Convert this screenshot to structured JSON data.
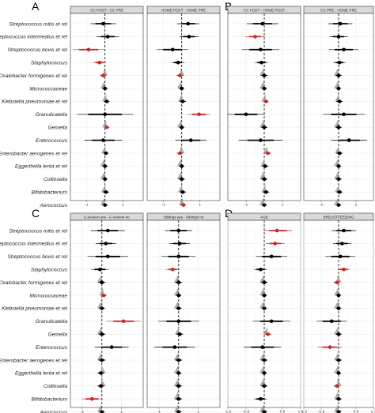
{
  "chart_data": [
    {
      "letter": "A",
      "type": "forest",
      "facets": [
        {
          "strip": "CC POST - CC PRE",
          "xlim": [
            -1.9,
            2.1
          ],
          "xticks": [
            -1,
            0,
            1
          ],
          "points": [
            {
              "est": -0.1,
              "lo": -0.5,
              "hi": 0.3,
              "sig": false
            },
            {
              "est": 0.15,
              "lo": -0.2,
              "hi": 0.5,
              "sig": false
            },
            {
              "est": -0.9,
              "lo": -1.4,
              "hi": -0.4,
              "sig": true
            },
            {
              "est": -0.3,
              "lo": -0.5,
              "hi": -0.1,
              "sig": true
            },
            {
              "est": -0.1,
              "lo": -0.2,
              "hi": 0.0,
              "sig": true
            },
            {
              "est": 0.0,
              "lo": -0.08,
              "hi": 0.08,
              "sig": false
            },
            {
              "est": 0.1,
              "lo": 0.02,
              "hi": 0.18,
              "sig": false
            },
            {
              "est": 0.0,
              "lo": -0.9,
              "hi": 0.9,
              "sig": false
            },
            {
              "est": 0.1,
              "lo": 0.02,
              "hi": 0.18,
              "sig": true
            },
            {
              "est": -0.1,
              "lo": -0.7,
              "hi": 0.5,
              "sig": false
            },
            {
              "est": 0.05,
              "lo": -0.03,
              "hi": 0.13,
              "sig": false
            },
            {
              "est": 0.0,
              "lo": -0.08,
              "hi": 0.08,
              "sig": false
            },
            {
              "est": 0.0,
              "lo": -0.08,
              "hi": 0.08,
              "sig": false
            },
            {
              "est": 0.05,
              "lo": -0.05,
              "hi": 0.15,
              "sig": false
            },
            {
              "est": 0.0,
              "lo": -0.08,
              "hi": 0.08,
              "sig": false
            }
          ]
        },
        {
          "strip": "HOME POST - HOME PRE",
          "xlim": [
            -1.9,
            2.1
          ],
          "xticks": [
            -1,
            0,
            1
          ],
          "points": [
            {
              "est": 0.35,
              "lo": 0.0,
              "hi": 0.7,
              "sig": false
            },
            {
              "est": 0.4,
              "lo": 0.1,
              "hi": 0.7,
              "sig": false
            },
            {
              "est": -0.5,
              "lo": -1.0,
              "hi": 0.0,
              "sig": false
            },
            {
              "est": -0.2,
              "lo": -0.4,
              "hi": 0.0,
              "sig": false
            },
            {
              "est": -0.1,
              "lo": -0.2,
              "hi": 0.0,
              "sig": true
            },
            {
              "est": 0.0,
              "lo": -0.08,
              "hi": 0.08,
              "sig": false
            },
            {
              "est": 0.05,
              "lo": -0.05,
              "hi": 0.15,
              "sig": false
            },
            {
              "est": 0.95,
              "lo": 0.6,
              "hi": 1.3,
              "sig": true
            },
            {
              "est": 0.0,
              "lo": -0.08,
              "hi": 0.08,
              "sig": false
            },
            {
              "est": 0.5,
              "lo": 0.0,
              "hi": 1.0,
              "sig": false
            },
            {
              "est": -0.1,
              "lo": -0.2,
              "hi": 0.0,
              "sig": true
            },
            {
              "est": 0.0,
              "lo": -0.08,
              "hi": 0.08,
              "sig": false
            },
            {
              "est": 0.0,
              "lo": -0.1,
              "hi": 0.1,
              "sig": false
            },
            {
              "est": 0.05,
              "lo": -0.05,
              "hi": 0.15,
              "sig": false
            },
            {
              "est": 0.1,
              "lo": 0.02,
              "hi": 0.18,
              "sig": true
            }
          ]
        }
      ]
    },
    {
      "letter": "B",
      "type": "forest",
      "facets": [
        {
          "strip": "CC POST - HOME POST",
          "xlim": [
            -2.0,
            2.0
          ],
          "xticks": [
            -1,
            0,
            1
          ],
          "points": [
            {
              "est": -0.1,
              "lo": -0.6,
              "hi": 0.4,
              "sig": false
            },
            {
              "est": -0.5,
              "lo": -0.8,
              "hi": -0.2,
              "sig": true
            },
            {
              "est": -0.2,
              "lo": -0.8,
              "hi": 0.4,
              "sig": false
            },
            {
              "est": -0.15,
              "lo": -0.35,
              "hi": 0.05,
              "sig": false
            },
            {
              "est": 0.0,
              "lo": -0.1,
              "hi": 0.1,
              "sig": false
            },
            {
              "est": 0.0,
              "lo": -0.08,
              "hi": 0.08,
              "sig": false
            },
            {
              "est": 0.1,
              "lo": 0.02,
              "hi": 0.18,
              "sig": true
            },
            {
              "est": -1.0,
              "lo": -1.6,
              "hi": -0.4,
              "sig": false
            },
            {
              "est": 0.0,
              "lo": -0.1,
              "hi": 0.1,
              "sig": false
            },
            {
              "est": -0.2,
              "lo": -0.9,
              "hi": 0.5,
              "sig": false
            },
            {
              "est": 0.2,
              "lo": 0.1,
              "hi": 0.3,
              "sig": true
            },
            {
              "est": 0.05,
              "lo": -0.05,
              "hi": 0.15,
              "sig": false
            },
            {
              "est": 0.0,
              "lo": -0.1,
              "hi": 0.1,
              "sig": false
            },
            {
              "est": 0.1,
              "lo": 0.0,
              "hi": 0.2,
              "sig": false
            },
            {
              "est": 0.0,
              "lo": -0.08,
              "hi": 0.08,
              "sig": false
            }
          ]
        },
        {
          "strip": "CC PRE - HOME PRE",
          "xlim": [
            -2.0,
            2.0
          ],
          "xticks": [
            -1,
            0,
            1
          ],
          "points": [
            {
              "est": 0.1,
              "lo": -0.3,
              "hi": 0.5,
              "sig": false
            },
            {
              "est": 0.0,
              "lo": -0.3,
              "hi": 0.3,
              "sig": false
            },
            {
              "est": 0.3,
              "lo": -0.2,
              "hi": 0.8,
              "sig": false
            },
            {
              "est": 0.05,
              "lo": -0.15,
              "hi": 0.25,
              "sig": false
            },
            {
              "est": 0.0,
              "lo": -0.1,
              "hi": 0.1,
              "sig": false
            },
            {
              "est": 0.0,
              "lo": -0.08,
              "hi": 0.08,
              "sig": false
            },
            {
              "est": 0.05,
              "lo": -0.05,
              "hi": 0.15,
              "sig": false
            },
            {
              "est": 0.3,
              "lo": -0.4,
              "hi": 1.0,
              "sig": false
            },
            {
              "est": 0.0,
              "lo": -0.1,
              "hi": 0.1,
              "sig": false
            },
            {
              "est": 0.6,
              "lo": 0.0,
              "hi": 1.2,
              "sig": false
            },
            {
              "est": 0.05,
              "lo": -0.05,
              "hi": 0.15,
              "sig": false
            },
            {
              "est": 0.0,
              "lo": -0.08,
              "hi": 0.08,
              "sig": false
            },
            {
              "est": 0.0,
              "lo": -0.1,
              "hi": 0.1,
              "sig": false
            },
            {
              "est": 0.05,
              "lo": -0.05,
              "hi": 0.15,
              "sig": false
            },
            {
              "est": 0.0,
              "lo": -0.08,
              "hi": 0.08,
              "sig": false
            }
          ]
        }
      ]
    },
    {
      "letter": "C",
      "type": "forest",
      "facets": [
        {
          "strip": "C-section yes - C-section no",
          "xlim": [
            -1.6,
            2.1
          ],
          "xticks": [
            -1,
            0,
            1
          ],
          "points": [
            {
              "est": 0.3,
              "lo": -0.2,
              "hi": 0.8,
              "sig": false
            },
            {
              "est": 0.2,
              "lo": -0.1,
              "hi": 0.5,
              "sig": false
            },
            {
              "est": 0.3,
              "lo": -0.3,
              "hi": 0.9,
              "sig": false
            },
            {
              "est": -0.1,
              "lo": -0.35,
              "hi": 0.15,
              "sig": false
            },
            {
              "est": 0.0,
              "lo": -0.1,
              "hi": 0.1,
              "sig": false
            },
            {
              "est": 0.1,
              "lo": 0.02,
              "hi": 0.18,
              "sig": true
            },
            {
              "est": 0.0,
              "lo": -0.08,
              "hi": 0.08,
              "sig": false
            },
            {
              "est": 1.1,
              "lo": 0.6,
              "hi": 1.6,
              "sig": true
            },
            {
              "est": 0.0,
              "lo": -0.1,
              "hi": 0.1,
              "sig": false
            },
            {
              "est": 0.5,
              "lo": 0.0,
              "hi": 1.0,
              "sig": false
            },
            {
              "est": 0.0,
              "lo": -0.1,
              "hi": 0.1,
              "sig": false
            },
            {
              "est": -0.05,
              "lo": -0.15,
              "hi": 0.05,
              "sig": false
            },
            {
              "est": -0.05,
              "lo": -0.15,
              "hi": 0.05,
              "sig": false
            },
            {
              "est": -0.5,
              "lo": -0.8,
              "hi": -0.2,
              "sig": true
            },
            {
              "est": 0.0,
              "lo": -0.08,
              "hi": 0.08,
              "sig": false
            }
          ]
        },
        {
          "strip": "Siblings yes - Siblings no",
          "xlim": [
            -1.6,
            2.1
          ],
          "xticks": [
            -1,
            0,
            1
          ],
          "points": [
            {
              "est": 0.0,
              "lo": -0.4,
              "hi": 0.4,
              "sig": false
            },
            {
              "est": 0.05,
              "lo": -0.25,
              "hi": 0.35,
              "sig": false
            },
            {
              "est": 0.0,
              "lo": -0.5,
              "hi": 0.5,
              "sig": false
            },
            {
              "est": -0.3,
              "lo": -0.5,
              "hi": -0.1,
              "sig": true
            },
            {
              "est": 0.0,
              "lo": -0.1,
              "hi": 0.1,
              "sig": false
            },
            {
              "est": 0.0,
              "lo": -0.08,
              "hi": 0.08,
              "sig": false
            },
            {
              "est": 0.0,
              "lo": -0.08,
              "hi": 0.08,
              "sig": false
            },
            {
              "est": 0.0,
              "lo": -0.6,
              "hi": 0.6,
              "sig": false
            },
            {
              "est": 0.05,
              "lo": -0.05,
              "hi": 0.15,
              "sig": false
            },
            {
              "est": -0.2,
              "lo": -0.8,
              "hi": 0.4,
              "sig": false
            },
            {
              "est": 0.0,
              "lo": -0.1,
              "hi": 0.1,
              "sig": false
            },
            {
              "est": 0.0,
              "lo": -0.08,
              "hi": 0.08,
              "sig": false
            },
            {
              "est": 0.0,
              "lo": -0.1,
              "hi": 0.1,
              "sig": false
            },
            {
              "est": 0.0,
              "lo": -0.1,
              "hi": 0.1,
              "sig": false
            },
            {
              "est": 0.0,
              "lo": -0.08,
              "hi": 0.08,
              "sig": false
            }
          ]
        }
      ]
    },
    {
      "letter": "D",
      "type": "forest",
      "facets": [
        {
          "strip": "AGE",
          "xlim": [
            -1.0,
            1.0
          ],
          "xticks": [
            -1.0,
            -0.5,
            0.0,
            0.5,
            1.0
          ],
          "xticklabels": [
            "-1.0",
            "-0.5",
            "0.0",
            "0.5",
            "1.0"
          ],
          "points": [
            {
              "est": 0.35,
              "lo": 0.15,
              "hi": 0.6,
              "sig": true
            },
            {
              "est": 0.3,
              "lo": 0.15,
              "hi": 0.45,
              "sig": true
            },
            {
              "est": 0.2,
              "lo": -0.05,
              "hi": 0.45,
              "sig": false
            },
            {
              "est": -0.1,
              "lo": -0.2,
              "hi": 0.0,
              "sig": false
            },
            {
              "est": 0.0,
              "lo": -0.05,
              "hi": 0.05,
              "sig": false
            },
            {
              "est": 0.0,
              "lo": -0.04,
              "hi": 0.04,
              "sig": false
            },
            {
              "est": 0.0,
              "lo": -0.04,
              "hi": 0.04,
              "sig": false
            },
            {
              "est": 0.2,
              "lo": -0.1,
              "hi": 0.5,
              "sig": false
            },
            {
              "est": 0.1,
              "lo": 0.05,
              "hi": 0.15,
              "sig": true
            },
            {
              "est": -0.05,
              "lo": -0.35,
              "hi": 0.25,
              "sig": false
            },
            {
              "est": 0.0,
              "lo": -0.05,
              "hi": 0.05,
              "sig": false
            },
            {
              "est": 0.0,
              "lo": -0.04,
              "hi": 0.04,
              "sig": false
            },
            {
              "est": 0.0,
              "lo": -0.05,
              "hi": 0.05,
              "sig": false
            },
            {
              "est": -0.1,
              "lo": -0.2,
              "hi": 0.0,
              "sig": false
            },
            {
              "est": 0.0,
              "lo": -0.04,
              "hi": 0.04,
              "sig": false
            }
          ]
        },
        {
          "strip": "BREASTFEEDING",
          "xlim": [
            -1.0,
            1.0
          ],
          "xticks": [
            -1.0,
            -0.5,
            0.0,
            0.5,
            1.0
          ],
          "xticklabels": [
            "-1.0",
            "-0.5",
            "0.0",
            "0.5",
            "1.0"
          ],
          "points": [
            {
              "est": 0.15,
              "lo": -0.05,
              "hi": 0.35,
              "sig": false
            },
            {
              "est": 0.1,
              "lo": -0.05,
              "hi": 0.25,
              "sig": false
            },
            {
              "est": 0.05,
              "lo": -0.2,
              "hi": 0.3,
              "sig": false
            },
            {
              "est": 0.15,
              "lo": 0.05,
              "hi": 0.25,
              "sig": true
            },
            {
              "est": -0.05,
              "lo": -0.1,
              "hi": 0.0,
              "sig": true
            },
            {
              "est": 0.0,
              "lo": -0.04,
              "hi": 0.04,
              "sig": false
            },
            {
              "est": 0.0,
              "lo": -0.04,
              "hi": 0.04,
              "sig": false
            },
            {
              "est": -0.2,
              "lo": -0.45,
              "hi": 0.05,
              "sig": false
            },
            {
              "est": 0.0,
              "lo": -0.05,
              "hi": 0.05,
              "sig": false
            },
            {
              "est": -0.25,
              "lo": -0.45,
              "hi": -0.05,
              "sig": true
            },
            {
              "est": 0.0,
              "lo": -0.05,
              "hi": 0.05,
              "sig": false
            },
            {
              "est": 0.0,
              "lo": -0.04,
              "hi": 0.04,
              "sig": false
            },
            {
              "est": -0.05,
              "lo": -0.1,
              "hi": 0.0,
              "sig": true
            },
            {
              "est": 0.0,
              "lo": -0.05,
              "hi": 0.05,
              "sig": false
            },
            {
              "est": 0.0,
              "lo": -0.04,
              "hi": 0.04,
              "sig": false
            }
          ]
        }
      ]
    }
  ],
  "taxa": [
    "Streptococcus mitis et rel",
    "Streptococcus intermedius et rel",
    "Streptococcus bovis et rel",
    "Staphylococcus",
    "Oxalobacter formigenes et rel",
    "Micrococcaceae",
    "Klebsiella pneumoniae et rel",
    "Granulicatella",
    "Gemella",
    "Enterococcus",
    "Enterobacter aerogenes et rel",
    "Eggerthella lenta et rel",
    "Collinsella",
    "Bifidobacterium",
    "Aerococcus"
  ],
  "colors": {
    "significant": "#c8282c",
    "not_significant": "#000000",
    "density": "#9e9e9e",
    "zero_line": "#000000"
  }
}
